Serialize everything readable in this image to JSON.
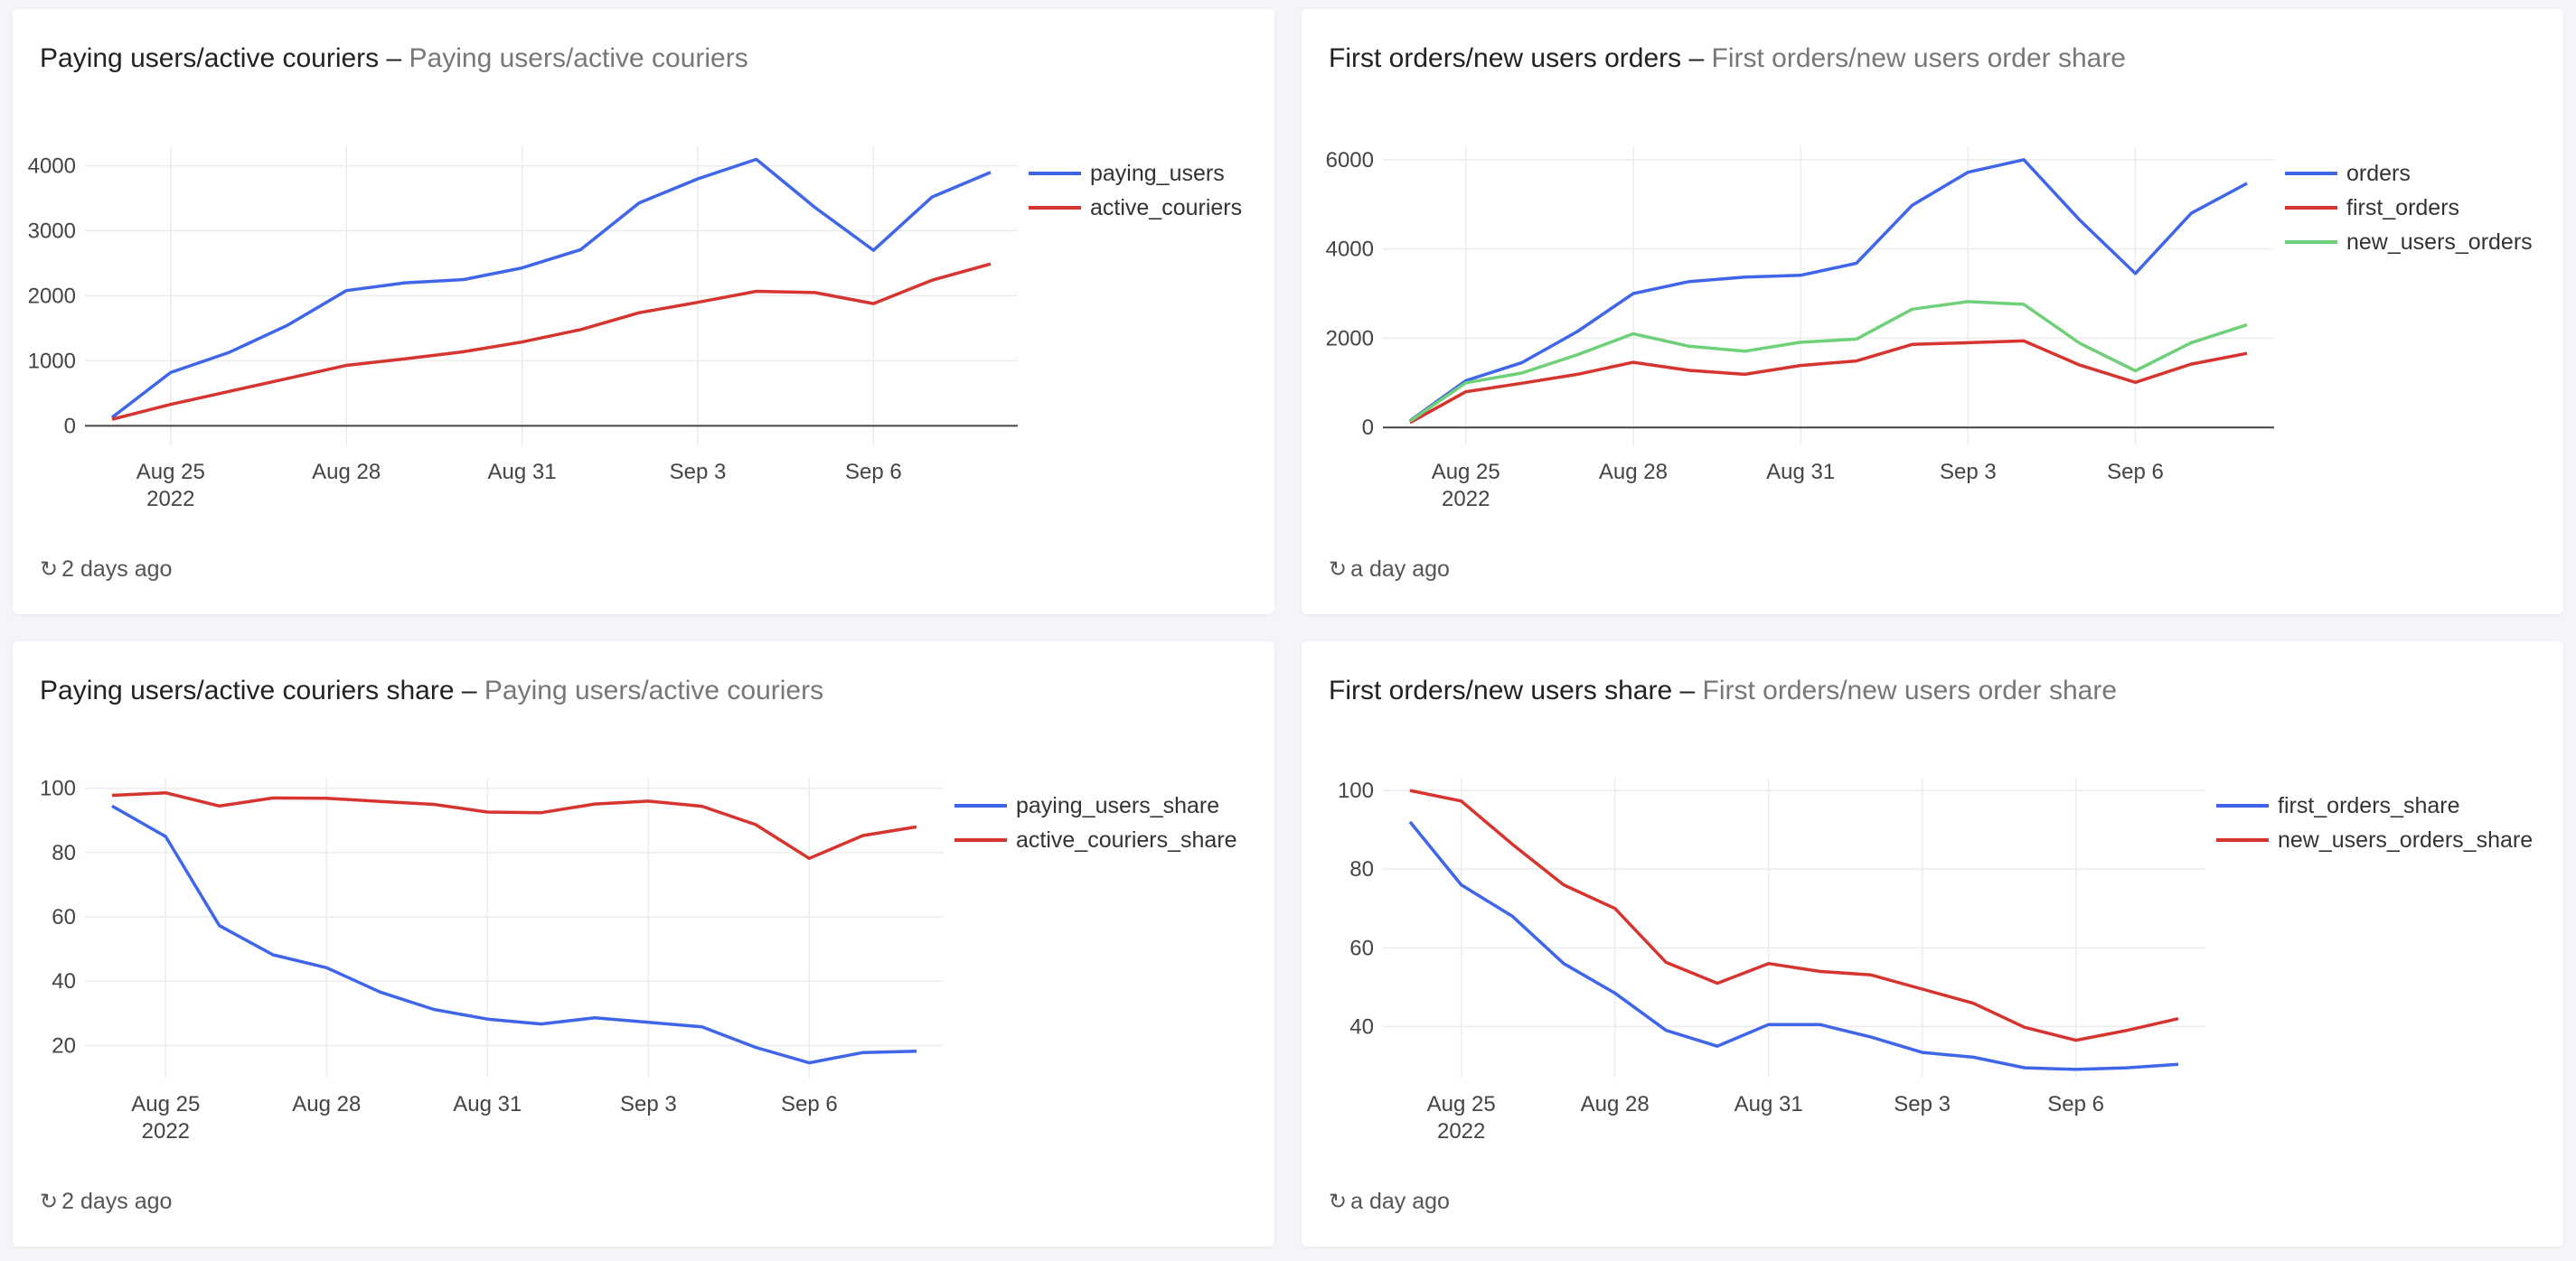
{
  "dates": [
    "Aug 24",
    "Aug 25",
    "Aug 26",
    "Aug 27",
    "Aug 28",
    "Aug 29",
    "Aug 30",
    "Aug 31",
    "Sep 1",
    "Sep 2",
    "Sep 3",
    "Sep 4",
    "Sep 5",
    "Sep 6",
    "Sep 7",
    "Sep 8"
  ],
  "panels": [
    {
      "title": "Paying users/active couriers",
      "separator": "–",
      "subtitle": "Paying users/active couriers",
      "refresh": "2 days ago",
      "refresh_icon": "refresh-icon"
    },
    {
      "title": "First orders/new users orders",
      "separator": "–",
      "subtitle": "First orders/new users order share",
      "refresh": "a day ago",
      "refresh_icon": "refresh-icon"
    },
    {
      "title": "Paying users/active couriers share",
      "separator": "–",
      "subtitle": "Paying users/active couriers",
      "refresh": "2 days ago",
      "refresh_icon": "refresh-icon"
    },
    {
      "title": "First orders/new users share",
      "separator": "–",
      "subtitle": "First orders/new users order share",
      "refresh": "a day ago",
      "refresh_icon": "refresh-icon"
    }
  ],
  "chart_data": [
    {
      "type": "line",
      "x": [
        "2022-08-24",
        "2022-08-25",
        "2022-08-26",
        "2022-08-27",
        "2022-08-28",
        "2022-08-29",
        "2022-08-30",
        "2022-08-31",
        "2022-09-01",
        "2022-09-02",
        "2022-09-03",
        "2022-09-04",
        "2022-09-05",
        "2022-09-06",
        "2022-09-07",
        "2022-09-08"
      ],
      "xticks": [
        {
          "label": "Aug 25",
          "sublabel": "2022"
        },
        {
          "label": "Aug 28",
          "sublabel": ""
        },
        {
          "label": "Aug 31",
          "sublabel": ""
        },
        {
          "label": "Sep 3",
          "sublabel": ""
        },
        {
          "label": "Sep 6",
          "sublabel": ""
        }
      ],
      "yticks": [
        0,
        1000,
        2000,
        3000,
        4000
      ],
      "ylim": [
        -300,
        4300
      ],
      "grid": true,
      "legend": "top-right",
      "series": [
        {
          "name": "paying_users",
          "color": "#3f66e8",
          "values": [
            130,
            820,
            1130,
            1550,
            2080,
            2200,
            2250,
            2430,
            2710,
            3430,
            3800,
            4100,
            3360,
            2700,
            3520,
            3900
          ]
        },
        {
          "name": "active_couriers",
          "color": "#d6342f",
          "values": [
            100,
            330,
            530,
            730,
            930,
            1030,
            1140,
            1290,
            1480,
            1740,
            1900,
            2070,
            2050,
            1880,
            2240,
            2490
          ]
        }
      ]
    },
    {
      "type": "line",
      "x": [
        "2022-08-24",
        "2022-08-25",
        "2022-08-26",
        "2022-08-27",
        "2022-08-28",
        "2022-08-29",
        "2022-08-30",
        "2022-08-31",
        "2022-09-01",
        "2022-09-02",
        "2022-09-03",
        "2022-09-04",
        "2022-09-05",
        "2022-09-06",
        "2022-09-07",
        "2022-09-08"
      ],
      "xticks": [
        {
          "label": "Aug 25",
          "sublabel": "2022"
        },
        {
          "label": "Aug 28",
          "sublabel": ""
        },
        {
          "label": "Aug 31",
          "sublabel": ""
        },
        {
          "label": "Sep 3",
          "sublabel": ""
        },
        {
          "label": "Sep 6",
          "sublabel": ""
        }
      ],
      "yticks": [
        0,
        2000,
        4000,
        6000
      ],
      "ylim": [
        -400,
        6300
      ],
      "grid": true,
      "legend": "top-right",
      "series": [
        {
          "name": "orders",
          "color": "#3f66e8",
          "values": [
            150,
            1050,
            1450,
            2150,
            3000,
            3270,
            3370,
            3410,
            3680,
            4980,
            5720,
            6000,
            4650,
            3450,
            4800,
            5470
          ]
        },
        {
          "name": "first_orders",
          "color": "#d6342f",
          "values": [
            110,
            800,
            990,
            1190,
            1460,
            1280,
            1190,
            1390,
            1490,
            1860,
            1900,
            1940,
            1400,
            1010,
            1420,
            1660
          ]
        },
        {
          "name": "new_users_orders",
          "color": "#6fd07a",
          "values": [
            140,
            1000,
            1220,
            1630,
            2100,
            1820,
            1710,
            1910,
            1980,
            2650,
            2820,
            2760,
            1890,
            1270,
            1900,
            2300
          ]
        }
      ]
    },
    {
      "type": "line",
      "x": [
        "2022-08-24",
        "2022-08-25",
        "2022-08-26",
        "2022-08-27",
        "2022-08-28",
        "2022-08-29",
        "2022-08-30",
        "2022-08-31",
        "2022-09-01",
        "2022-09-02",
        "2022-09-03",
        "2022-09-04",
        "2022-09-05",
        "2022-09-06",
        "2022-09-07",
        "2022-09-08"
      ],
      "xticks": [
        {
          "label": "Aug 25",
          "sublabel": "2022"
        },
        {
          "label": "Aug 28",
          "sublabel": ""
        },
        {
          "label": "Aug 31",
          "sublabel": ""
        },
        {
          "label": "Sep 3",
          "sublabel": ""
        },
        {
          "label": "Sep 6",
          "sublabel": ""
        }
      ],
      "yticks": [
        20,
        40,
        60,
        80,
        100
      ],
      "ylim": [
        10,
        103
      ],
      "grid": true,
      "legend": "top-right",
      "series": [
        {
          "name": "paying_users_share",
          "color": "#3f66e8",
          "values": [
            94.5,
            85,
            57.3,
            48.2,
            44.2,
            36.6,
            31.2,
            28.2,
            26.7,
            28.6,
            27.2,
            25.8,
            19.4,
            14.6,
            17.8,
            18.2
          ]
        },
        {
          "name": "active_couriers_share",
          "color": "#d6342f",
          "values": [
            97.8,
            98.6,
            94.5,
            97.0,
            96.9,
            95.9,
            95.0,
            92.6,
            92.4,
            95.1,
            96.0,
            94.4,
            88.7,
            78.2,
            85.3,
            88.0
          ]
        }
      ]
    },
    {
      "type": "line",
      "x": [
        "2022-08-24",
        "2022-08-25",
        "2022-08-26",
        "2022-08-27",
        "2022-08-28",
        "2022-08-29",
        "2022-08-30",
        "2022-08-31",
        "2022-09-01",
        "2022-09-02",
        "2022-09-03",
        "2022-09-04",
        "2022-09-05",
        "2022-09-06",
        "2022-09-07",
        "2022-09-08"
      ],
      "xticks": [
        {
          "label": "Aug 25",
          "sublabel": "2022"
        },
        {
          "label": "Aug 28",
          "sublabel": ""
        },
        {
          "label": "Aug 31",
          "sublabel": ""
        },
        {
          "label": "Sep 3",
          "sublabel": ""
        },
        {
          "label": "Sep 6",
          "sublabel": ""
        }
      ],
      "yticks": [
        40,
        60,
        80,
        100
      ],
      "ylim": [
        27,
        103
      ],
      "grid": true,
      "legend": "top-right",
      "series": [
        {
          "name": "first_orders_share",
          "color": "#3f66e8",
          "values": [
            92,
            76,
            68,
            56,
            48.5,
            39,
            35,
            40.5,
            40.5,
            37.3,
            33.4,
            32.2,
            29.5,
            29.1,
            29.5,
            30.4
          ]
        },
        {
          "name": "new_users_orders_share",
          "color": "#d6342f",
          "values": [
            100,
            97.3,
            86.3,
            76,
            70,
            56.3,
            51,
            56,
            54,
            53.1,
            49.5,
            45.9,
            39.8,
            36.5,
            39,
            42
          ]
        }
      ]
    }
  ]
}
